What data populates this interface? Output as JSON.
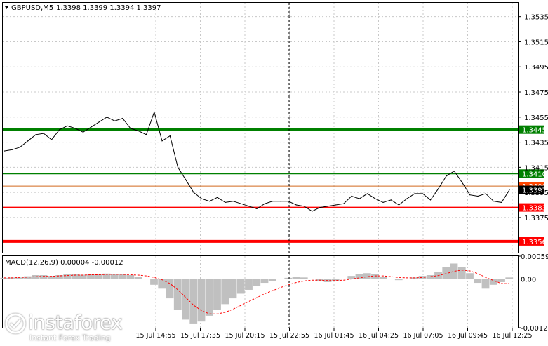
{
  "header": {
    "symbol": "GBPUSD,M5",
    "ohlc": "1.3398 1.3399 1.3394 1.3397"
  },
  "price_axis": {
    "ticks": [
      "1.3535",
      "1.3515",
      "1.3495",
      "1.3475",
      "1.3455",
      "1.3435",
      "1.3415",
      "1.3395",
      "1.3375"
    ],
    "current_price": "1.3397"
  },
  "levels": [
    {
      "id": "res-upper",
      "price": "1.3445",
      "color": "#008000",
      "label_color": "#008000"
    },
    {
      "id": "res-lower",
      "price": "1.3410",
      "color": "#008000",
      "label_color": "#008000"
    },
    {
      "id": "mid",
      "price": "1.3400",
      "color": "#d2691e",
      "label_color": "#ff4500"
    },
    {
      "id": "sup-upper",
      "price": "1.3383",
      "color": "#ff0000",
      "label_color": "#ff0000"
    },
    {
      "id": "sup-lower",
      "price": "1.3356",
      "color": "#ff0000",
      "label_color": "#ff0000"
    }
  ],
  "macd": {
    "label": "MACD(12,26,9) 0.00004 -0.00012",
    "ticks": [
      "0.00059",
      "0.00",
      "-0.00126"
    ]
  },
  "time_axis": {
    "labels": [
      "15 Jul 14:55",
      "15 Jul 17:35",
      "15 Jul 20:15",
      "15 Jul 22:55",
      "16 Jul 01:45",
      "16 Jul 04:25",
      "16 Jul 07:05",
      "16 Jul 09:45",
      "16 Jul 12:25"
    ]
  },
  "watermark": {
    "brand": "instaforex",
    "tagline": "Instant Forex Trading"
  },
  "colors": {
    "price_line": "#000000",
    "histogram": "#c0c0c0",
    "signal": "#ff0000",
    "grid": "#c8c8c8"
  },
  "chart_data": {
    "type": "line",
    "title": "GBPUSD,M5",
    "price_series": [
      1.3428,
      1.3429,
      1.3431,
      1.3436,
      1.3441,
      1.3442,
      1.3437,
      1.3445,
      1.3448,
      1.3446,
      1.3443,
      1.3447,
      1.3451,
      1.3455,
      1.3452,
      1.3454,
      1.3446,
      1.3444,
      1.3441,
      1.3459,
      1.3436,
      1.344,
      1.3415,
      1.3405,
      1.3395,
      1.339,
      1.3388,
      1.3391,
      1.3387,
      1.3388,
      1.3386,
      1.3384,
      1.3382,
      1.3386,
      1.3388,
      1.3388,
      1.3388,
      1.3385,
      1.3384,
      1.338,
      1.3383,
      1.3384,
      1.3385,
      1.3386,
      1.3392,
      1.339,
      1.3394,
      1.339,
      1.3387,
      1.3389,
      1.3385,
      1.339,
      1.3394,
      1.3394,
      1.3389,
      1.3398,
      1.3408,
      1.3412,
      1.3403,
      1.3393,
      1.3392,
      1.3394,
      1.3388,
      1.3387,
      1.3397
    ],
    "ylim": [
      1.3347,
      1.3546
    ],
    "levels": [
      1.3445,
      1.341,
      1.34,
      1.3383,
      1.3356
    ],
    "macd_histogram": [
      3e-05,
      4e-05,
      4e-05,
      7e-05,
      0.0001,
      0.0001,
      8e-05,
      0.0001,
      0.00012,
      0.00012,
      0.00011,
      0.00012,
      0.00013,
      0.00014,
      0.00013,
      0.00012,
      0.0001,
      6e-05,
      0.0,
      -0.00015,
      -0.00025,
      -0.0005,
      -0.0008,
      -0.00105,
      -0.00115,
      -0.0011,
      -0.00095,
      -0.0008,
      -0.00065,
      -0.0005,
      -0.00038,
      -0.00028,
      -0.00018,
      -0.0001,
      -5e-05,
      0.0,
      3e-05,
      5e-05,
      4e-05,
      0.0,
      -5e-05,
      -8e-05,
      -6e-05,
      0.0,
      8e-05,
      0.00012,
      0.00015,
      0.00012,
      6e-05,
      0.0,
      -3e-05,
      1e-05,
      4e-05,
      8e-05,
      0.0001,
      0.00018,
      0.0003,
      0.0004,
      0.0003,
      0.00015,
      -0.0001,
      -0.00025,
      -0.00015,
      -8e-05,
      4e-05
    ],
    "macd_signal": [
      3e-05,
      3e-05,
      4e-05,
      5e-05,
      6e-05,
      7e-05,
      7e-05,
      8e-05,
      9e-05,
      0.0001,
      0.0001,
      0.00011,
      0.00011,
      0.00012,
      0.00012,
      0.00012,
      0.00011,
      0.0001,
      8e-05,
      4e-05,
      -2e-05,
      -0.00012,
      -0.00028,
      -0.00048,
      -0.00068,
      -0.00082,
      -0.0009,
      -0.0009,
      -0.00086,
      -0.00078,
      -0.00068,
      -0.00058,
      -0.00048,
      -0.00038,
      -0.0003,
      -0.00022,
      -0.00015,
      -9e-05,
      -5e-05,
      -3e-05,
      -3e-05,
      -4e-05,
      -4e-05,
      -3e-05,
      0.0,
      3e-05,
      6e-05,
      8e-05,
      8e-05,
      6e-05,
      4e-05,
      3e-05,
      3e-05,
      4e-05,
      6e-05,
      9e-05,
      0.00014,
      0.0002,
      0.00023,
      0.00021,
      0.00014,
      4e-05,
      -4e-05,
      -0.00012,
      -0.00012
    ],
    "macd_ylim": [
      -0.00126,
      0.00059
    ]
  }
}
